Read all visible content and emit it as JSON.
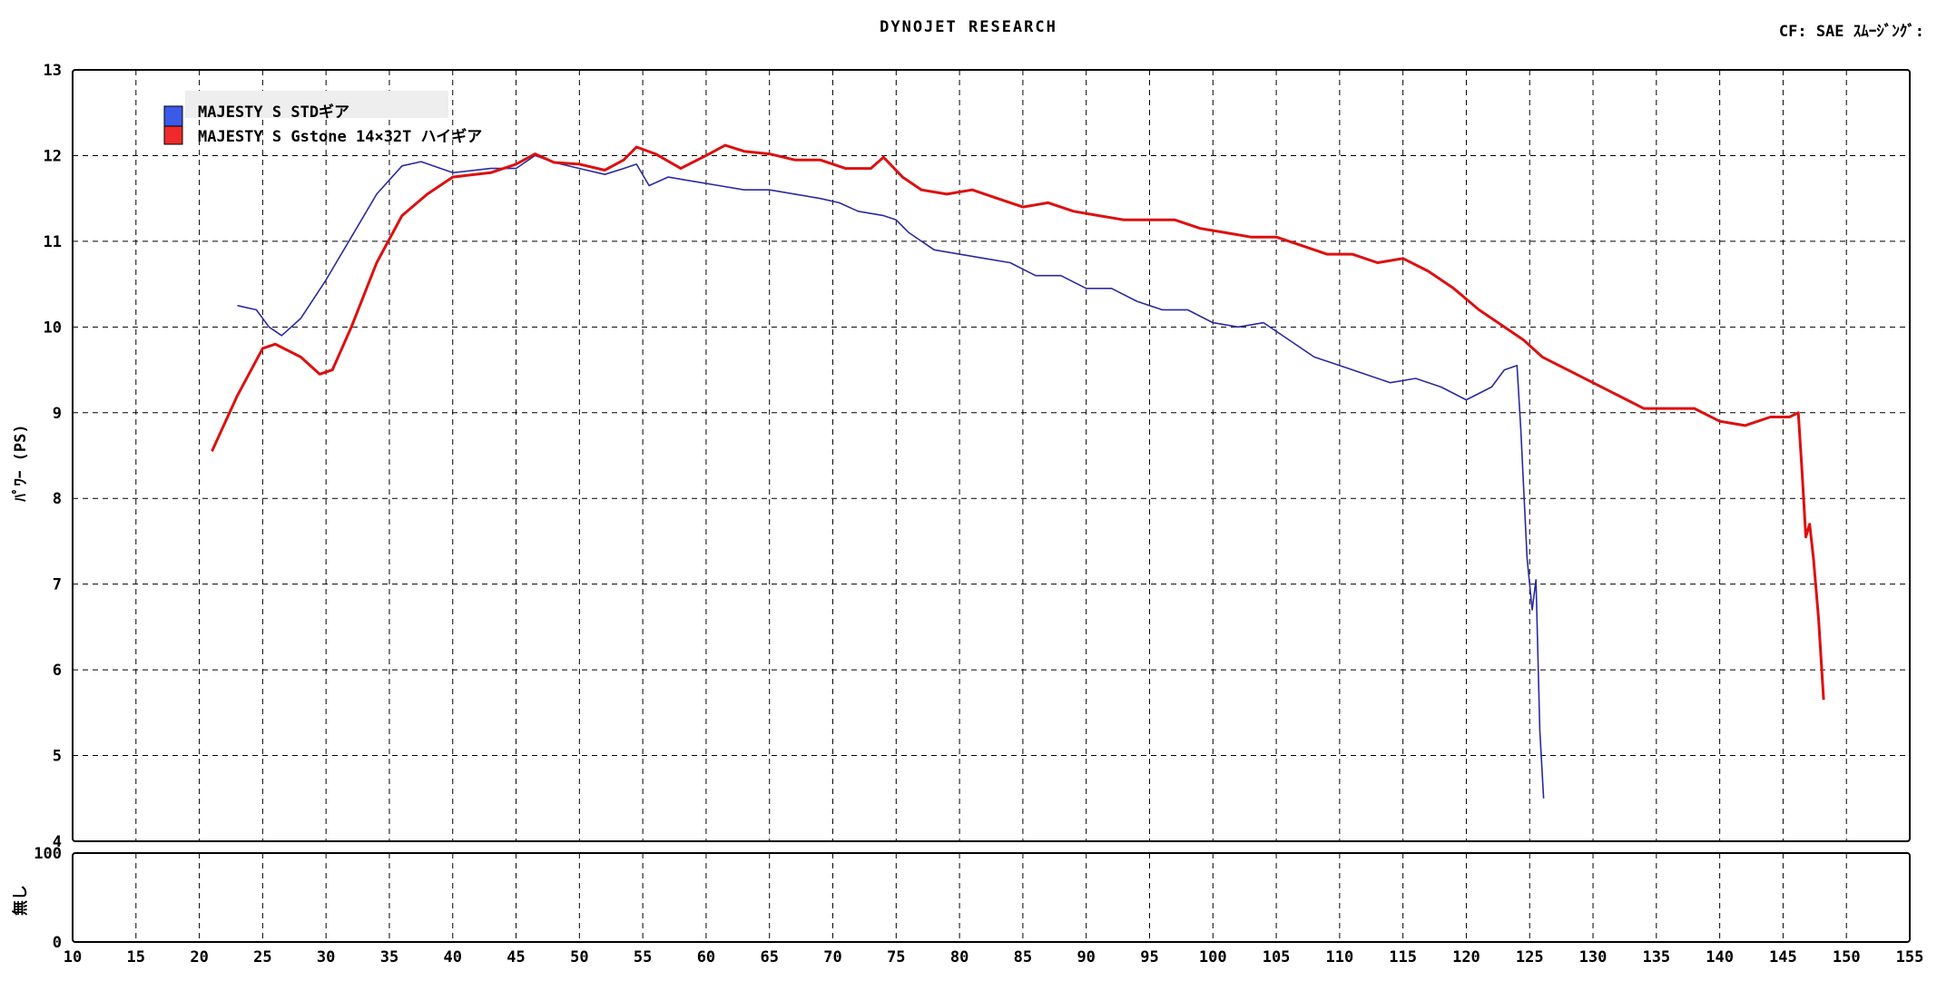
{
  "header": {
    "title": "DYNOJET RESEARCH",
    "right_text": "CF: SAE ｽﾑｰｼﾞﾝｸﾞ:"
  },
  "chart_data": [
    {
      "type": "line",
      "title": "",
      "xlabel": "",
      "ylabel": "ﾊﾟﾜｰ (PS)",
      "xlim": [
        10,
        155
      ],
      "ylim": [
        4,
        13
      ],
      "x_ticks": [
        "10",
        "15",
        "20",
        "25",
        "30",
        "35",
        "40",
        "45",
        "50",
        "55",
        "60",
        "65",
        "70",
        "75",
        "80",
        "85",
        "90",
        "95",
        "100",
        "105",
        "110",
        "115",
        "120",
        "125",
        "130",
        "135",
        "140",
        "145",
        "150",
        "155"
      ],
      "y_ticks": [
        "4",
        "5",
        "6",
        "7",
        "8",
        "9",
        "10",
        "11",
        "12",
        "13"
      ],
      "grid": true,
      "legend_position": "top-left",
      "series": [
        {
          "name": "MAJESTY S STDギア",
          "color": "#2a2aa0",
          "points": [
            [
              23,
              10.25
            ],
            [
              24.5,
              10.2
            ],
            [
              25.5,
              10.0
            ],
            [
              26.5,
              9.9
            ],
            [
              28,
              10.1
            ],
            [
              30,
              10.55
            ],
            [
              32,
              11.05
            ],
            [
              34,
              11.55
            ],
            [
              36,
              11.88
            ],
            [
              37.5,
              11.93
            ],
            [
              40,
              11.8
            ],
            [
              43,
              11.85
            ],
            [
              45,
              11.85
            ],
            [
              46.5,
              12.0
            ],
            [
              48,
              11.92
            ],
            [
              50,
              11.85
            ],
            [
              52,
              11.78
            ],
            [
              53.5,
              11.85
            ],
            [
              54.5,
              11.9
            ],
            [
              55.5,
              11.65
            ],
            [
              57,
              11.75
            ],
            [
              59,
              11.7
            ],
            [
              61,
              11.65
            ],
            [
              63,
              11.6
            ],
            [
              65,
              11.6
            ],
            [
              67,
              11.55
            ],
            [
              69,
              11.5
            ],
            [
              70.5,
              11.45
            ],
            [
              72,
              11.35
            ],
            [
              74,
              11.3
            ],
            [
              75,
              11.25
            ],
            [
              76,
              11.1
            ],
            [
              78,
              10.9
            ],
            [
              80,
              10.85
            ],
            [
              82,
              10.8
            ],
            [
              84,
              10.75
            ],
            [
              86,
              10.6
            ],
            [
              88,
              10.6
            ],
            [
              90,
              10.45
            ],
            [
              92,
              10.45
            ],
            [
              94,
              10.3
            ],
            [
              96,
              10.2
            ],
            [
              98,
              10.2
            ],
            [
              100,
              10.05
            ],
            [
              102,
              10.0
            ],
            [
              104,
              10.05
            ],
            [
              106,
              9.85
            ],
            [
              108,
              9.65
            ],
            [
              110,
              9.55
            ],
            [
              112,
              9.45
            ],
            [
              114,
              9.35
            ],
            [
              116,
              9.4
            ],
            [
              118,
              9.3
            ],
            [
              120,
              9.15
            ],
            [
              122,
              9.3
            ],
            [
              123,
              9.5
            ],
            [
              124,
              9.55
            ],
            [
              124.3,
              8.8
            ],
            [
              124.8,
              7.3
            ],
            [
              125.2,
              6.7
            ],
            [
              125.5,
              7.05
            ],
            [
              125.8,
              5.3
            ],
            [
              126.1,
              4.5
            ]
          ]
        },
        {
          "name": "MAJESTY S Gstone 14×32T ハイギア",
          "color": "#dd1010",
          "points": [
            [
              21,
              8.55
            ],
            [
              23,
              9.2
            ],
            [
              25,
              9.75
            ],
            [
              26,
              9.8
            ],
            [
              28,
              9.65
            ],
            [
              29.5,
              9.45
            ],
            [
              30.5,
              9.5
            ],
            [
              32,
              10.0
            ],
            [
              34,
              10.75
            ],
            [
              36,
              11.3
            ],
            [
              38,
              11.55
            ],
            [
              40,
              11.75
            ],
            [
              43,
              11.8
            ],
            [
              45,
              11.9
            ],
            [
              46.5,
              12.02
            ],
            [
              48,
              11.92
            ],
            [
              50,
              11.9
            ],
            [
              52,
              11.83
            ],
            [
              53.5,
              11.95
            ],
            [
              54.5,
              12.1
            ],
            [
              56,
              12.02
            ],
            [
              58,
              11.85
            ],
            [
              60,
              12.0
            ],
            [
              61.5,
              12.12
            ],
            [
              63,
              12.05
            ],
            [
              65,
              12.02
            ],
            [
              67,
              11.95
            ],
            [
              69,
              11.95
            ],
            [
              71,
              11.85
            ],
            [
              73,
              11.85
            ],
            [
              74,
              11.98
            ],
            [
              75.5,
              11.75
            ],
            [
              77,
              11.6
            ],
            [
              79,
              11.55
            ],
            [
              81,
              11.6
            ],
            [
              83,
              11.5
            ],
            [
              85,
              11.4
            ],
            [
              87,
              11.45
            ],
            [
              89,
              11.35
            ],
            [
              91,
              11.3
            ],
            [
              93,
              11.25
            ],
            [
              95,
              11.25
            ],
            [
              97,
              11.25
            ],
            [
              99,
              11.15
            ],
            [
              101,
              11.1
            ],
            [
              103,
              11.05
            ],
            [
              105,
              11.05
            ],
            [
              107,
              10.95
            ],
            [
              109,
              10.85
            ],
            [
              111,
              10.85
            ],
            [
              113,
              10.75
            ],
            [
              115,
              10.8
            ],
            [
              117,
              10.65
            ],
            [
              119,
              10.45
            ],
            [
              121,
              10.2
            ],
            [
              123,
              10.0
            ],
            [
              124.5,
              9.85
            ],
            [
              126,
              9.65
            ],
            [
              128,
              9.5
            ],
            [
              130,
              9.35
            ],
            [
              132,
              9.2
            ],
            [
              134,
              9.05
            ],
            [
              136,
              9.05
            ],
            [
              138,
              9.05
            ],
            [
              140,
              8.9
            ],
            [
              142,
              8.85
            ],
            [
              144,
              8.95
            ],
            [
              145.5,
              8.95
            ],
            [
              146.2,
              9.0
            ],
            [
              146.5,
              8.3
            ],
            [
              146.8,
              7.55
            ],
            [
              147.1,
              7.7
            ],
            [
              147.4,
              7.3
            ],
            [
              147.8,
              6.6
            ],
            [
              148.2,
              5.65
            ]
          ]
        }
      ]
    },
    {
      "type": "line",
      "title": "",
      "xlabel": "",
      "ylabel": "無し",
      "xlim": [
        10,
        155
      ],
      "ylim": [
        0,
        100
      ],
      "y_ticks": [
        "0",
        "100"
      ],
      "grid": true,
      "series": []
    }
  ]
}
